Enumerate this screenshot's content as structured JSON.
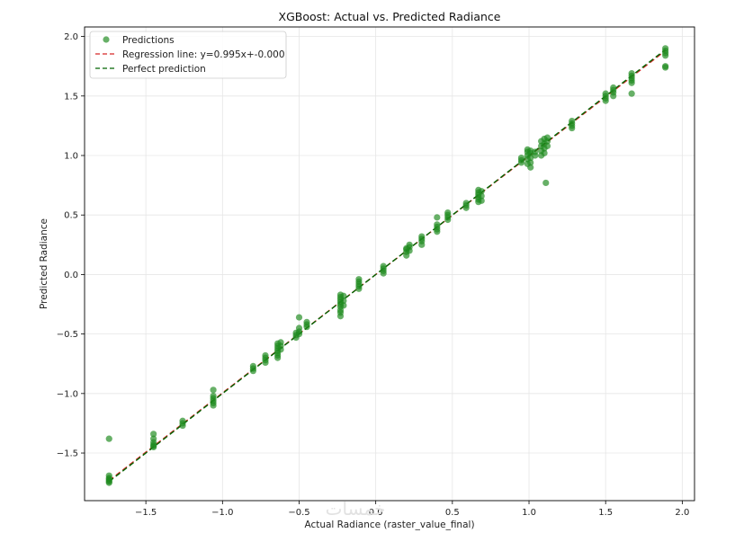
{
  "chart_data": {
    "type": "scatter",
    "title": "XGBoost: Actual vs. Predicted Radiance",
    "xlabel": "Actual Radiance (raster_value_final)",
    "ylabel": "Predicted Radiance",
    "xlim": [
      -1.9,
      2.08
    ],
    "ylim": [
      -1.9,
      2.08
    ],
    "xticks": [
      -1.5,
      -1.0,
      -0.5,
      0.0,
      0.5,
      1.0,
      1.5,
      2.0
    ],
    "xtick_labels": [
      "−1.5",
      "−1.0",
      "−0.5",
      "0.0",
      "0.5",
      "1.0",
      "1.5",
      "2.0"
    ],
    "yticks": [
      -1.5,
      -1.0,
      -0.5,
      0.0,
      0.5,
      1.0,
      1.5,
      2.0
    ],
    "ytick_labels": [
      "−1.5",
      "−1.0",
      "−0.5",
      "0.0",
      "0.5",
      "1.0",
      "1.5",
      "2.0"
    ],
    "grid": true,
    "legend_position": "top-left",
    "watermark": "خمسات",
    "series": [
      {
        "name": "Predictions",
        "kind": "scatter",
        "color": "#1f8a1f",
        "points": [
          [
            -1.74,
            -1.69
          ],
          [
            -1.74,
            -1.71
          ],
          [
            -1.74,
            -1.72
          ],
          [
            -1.74,
            -1.74
          ],
          [
            -1.74,
            -1.75
          ],
          [
            -1.74,
            -1.73
          ],
          [
            -1.74,
            -1.38
          ],
          [
            -1.45,
            -1.34
          ],
          [
            -1.45,
            -1.38
          ],
          [
            -1.45,
            -1.41
          ],
          [
            -1.45,
            -1.43
          ],
          [
            -1.45,
            -1.44
          ],
          [
            -1.45,
            -1.45
          ],
          [
            -1.26,
            -1.23
          ],
          [
            -1.26,
            -1.25
          ],
          [
            -1.26,
            -1.27
          ],
          [
            -1.06,
            -0.97
          ],
          [
            -1.06,
            -1.02
          ],
          [
            -1.06,
            -1.04
          ],
          [
            -1.06,
            -1.06
          ],
          [
            -1.06,
            -1.08
          ],
          [
            -1.06,
            -1.1
          ],
          [
            -0.8,
            -0.77
          ],
          [
            -0.8,
            -0.79
          ],
          [
            -0.8,
            -0.81
          ],
          [
            -0.72,
            -0.68
          ],
          [
            -0.72,
            -0.7
          ],
          [
            -0.72,
            -0.72
          ],
          [
            -0.72,
            -0.74
          ],
          [
            -0.64,
            -0.58
          ],
          [
            -0.64,
            -0.6
          ],
          [
            -0.64,
            -0.62
          ],
          [
            -0.64,
            -0.64
          ],
          [
            -0.64,
            -0.66
          ],
          [
            -0.64,
            -0.68
          ],
          [
            -0.64,
            -0.7
          ],
          [
            -0.62,
            -0.57
          ],
          [
            -0.62,
            -0.6
          ],
          [
            -0.62,
            -0.63
          ],
          [
            -0.52,
            -0.49
          ],
          [
            -0.52,
            -0.51
          ],
          [
            -0.52,
            -0.53
          ],
          [
            -0.5,
            -0.36
          ],
          [
            -0.5,
            -0.45
          ],
          [
            -0.5,
            -0.48
          ],
          [
            -0.5,
            -0.5
          ],
          [
            -0.45,
            -0.4
          ],
          [
            -0.45,
            -0.42
          ],
          [
            -0.45,
            -0.44
          ],
          [
            -0.23,
            -0.17
          ],
          [
            -0.23,
            -0.19
          ],
          [
            -0.23,
            -0.21
          ],
          [
            -0.23,
            -0.23
          ],
          [
            -0.23,
            -0.25
          ],
          [
            -0.23,
            -0.27
          ],
          [
            -0.23,
            -0.3
          ],
          [
            -0.23,
            -0.32
          ],
          [
            -0.23,
            -0.35
          ],
          [
            -0.21,
            -0.18
          ],
          [
            -0.21,
            -0.22
          ],
          [
            -0.21,
            -0.26
          ],
          [
            -0.11,
            -0.04
          ],
          [
            -0.11,
            -0.06
          ],
          [
            -0.11,
            -0.08
          ],
          [
            -0.11,
            -0.1
          ],
          [
            -0.11,
            -0.12
          ],
          [
            0.05,
            0.07
          ],
          [
            0.05,
            0.05
          ],
          [
            0.05,
            0.03
          ],
          [
            0.05,
            0.01
          ],
          [
            0.2,
            0.16
          ],
          [
            0.2,
            0.19
          ],
          [
            0.2,
            0.21
          ],
          [
            0.2,
            0.22
          ],
          [
            0.22,
            0.2
          ],
          [
            0.22,
            0.23
          ],
          [
            0.22,
            0.25
          ],
          [
            0.3,
            0.25
          ],
          [
            0.3,
            0.28
          ],
          [
            0.3,
            0.3
          ],
          [
            0.3,
            0.32
          ],
          [
            0.4,
            0.36
          ],
          [
            0.4,
            0.38
          ],
          [
            0.4,
            0.4
          ],
          [
            0.4,
            0.42
          ],
          [
            0.4,
            0.48
          ],
          [
            0.47,
            0.46
          ],
          [
            0.47,
            0.48
          ],
          [
            0.47,
            0.5
          ],
          [
            0.47,
            0.52
          ],
          [
            0.59,
            0.56
          ],
          [
            0.59,
            0.58
          ],
          [
            0.59,
            0.6
          ],
          [
            0.67,
            0.61
          ],
          [
            0.67,
            0.63
          ],
          [
            0.67,
            0.65
          ],
          [
            0.67,
            0.67
          ],
          [
            0.67,
            0.69
          ],
          [
            0.67,
            0.71
          ],
          [
            0.69,
            0.62
          ],
          [
            0.69,
            0.66
          ],
          [
            0.69,
            0.7
          ],
          [
            0.95,
            0.94
          ],
          [
            0.95,
            0.96
          ],
          [
            0.95,
            0.98
          ],
          [
            0.99,
            0.93
          ],
          [
            0.99,
            0.97
          ],
          [
            0.99,
            1.0
          ],
          [
            0.99,
            1.03
          ],
          [
            0.99,
            1.05
          ],
          [
            1.01,
            0.9
          ],
          [
            1.01,
            0.94
          ],
          [
            1.01,
            0.98
          ],
          [
            1.01,
            1.02
          ],
          [
            1.01,
            1.04
          ],
          [
            1.04,
            1.0
          ],
          [
            1.04,
            1.03
          ],
          [
            1.08,
            1.0
          ],
          [
            1.08,
            1.04
          ],
          [
            1.08,
            1.08
          ],
          [
            1.08,
            1.12
          ],
          [
            1.1,
            1.02
          ],
          [
            1.1,
            1.06
          ],
          [
            1.1,
            1.1
          ],
          [
            1.1,
            1.14
          ],
          [
            1.11,
            0.77
          ],
          [
            1.12,
            1.08
          ],
          [
            1.12,
            1.12
          ],
          [
            1.12,
            1.15
          ],
          [
            1.28,
            1.23
          ],
          [
            1.28,
            1.25
          ],
          [
            1.28,
            1.27
          ],
          [
            1.28,
            1.29
          ],
          [
            1.5,
            1.46
          ],
          [
            1.5,
            1.48
          ],
          [
            1.5,
            1.5
          ],
          [
            1.5,
            1.52
          ],
          [
            1.55,
            1.5
          ],
          [
            1.55,
            1.53
          ],
          [
            1.55,
            1.55
          ],
          [
            1.55,
            1.57
          ],
          [
            1.67,
            1.52
          ],
          [
            1.67,
            1.61
          ],
          [
            1.67,
            1.63
          ],
          [
            1.67,
            1.65
          ],
          [
            1.67,
            1.67
          ],
          [
            1.67,
            1.69
          ],
          [
            1.89,
            1.74
          ],
          [
            1.89,
            1.75
          ],
          [
            1.89,
            1.84
          ],
          [
            1.89,
            1.86
          ],
          [
            1.89,
            1.88
          ],
          [
            1.89,
            1.9
          ]
        ]
      },
      {
        "name": "Regression line: y=0.995x+-0.000",
        "kind": "line",
        "color": "#d62728",
        "dash": "dashed",
        "slope": 0.995,
        "intercept": 0.0,
        "x_range": [
          -1.74,
          1.89
        ]
      },
      {
        "name": "Perfect prediction",
        "kind": "line",
        "color": "#006400",
        "dash": "dashed",
        "slope": 1.0,
        "intercept": 0.0,
        "x_range": [
          -1.74,
          1.89
        ]
      }
    ]
  }
}
